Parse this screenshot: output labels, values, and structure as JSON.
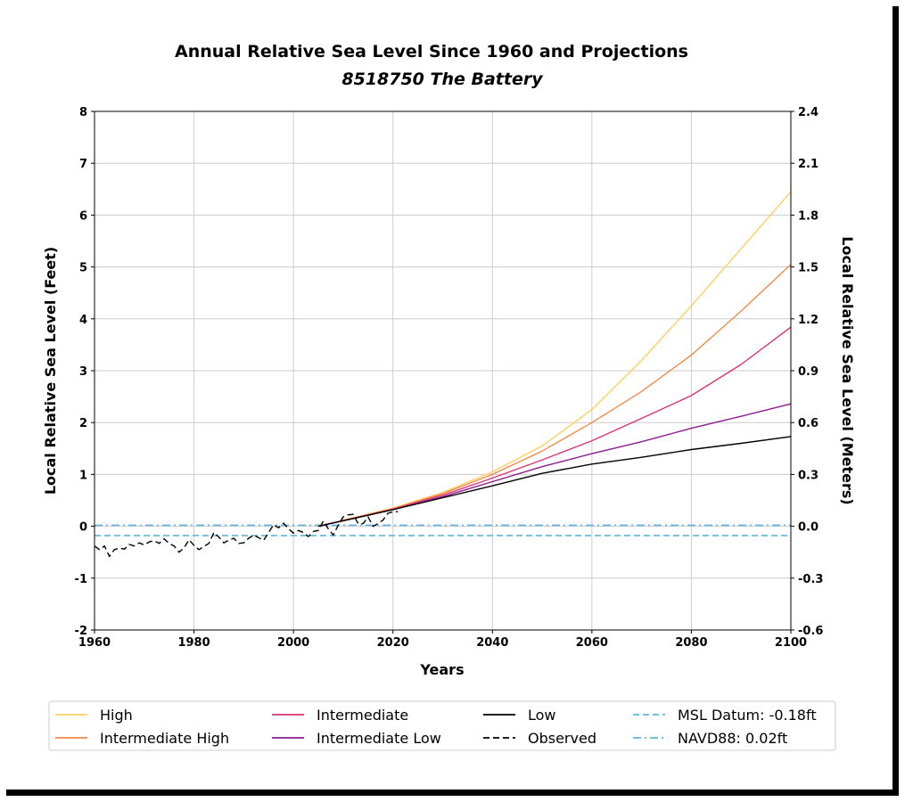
{
  "chart_data": {
    "type": "line",
    "title": "Annual Relative Sea Level Since 1960 and Projections",
    "subtitle": "8518750 The Battery",
    "xlabel": "Years",
    "ylabel_left": "Local Relative Sea Level (Feet)",
    "ylabel_right": "Local Relative Sea Level (Meters)",
    "xlim": [
      1960,
      2100
    ],
    "ylim_left": [
      -2,
      8
    ],
    "ylim_right": [
      -0.6,
      2.4
    ],
    "x_ticks": [
      1960,
      1980,
      2000,
      2020,
      2040,
      2060,
      2080,
      2100
    ],
    "y_ticks_left": [
      -2,
      -1,
      0,
      1,
      2,
      3,
      4,
      5,
      6,
      7,
      8
    ],
    "y_ticks_right": [
      "-0.6",
      "-0.3",
      "0.0",
      "0.3",
      "0.6",
      "0.9",
      "1.2",
      "1.5",
      "1.8",
      "2.1",
      "2.4"
    ],
    "grid": true,
    "legend_position": "bottom",
    "series": [
      {
        "name": "High",
        "color": "#fdcf5f",
        "style": "solid",
        "x": [
          2005,
          2020,
          2030,
          2040,
          2050,
          2060,
          2070,
          2080,
          2090,
          2100
        ],
        "y": [
          0.0,
          0.35,
          0.65,
          1.05,
          1.55,
          2.25,
          3.2,
          4.25,
          5.35,
          6.45
        ]
      },
      {
        "name": "Intermediate High",
        "color": "#f28a4a",
        "style": "solid",
        "x": [
          2005,
          2020,
          2030,
          2040,
          2050,
          2060,
          2070,
          2080,
          2090,
          2100
        ],
        "y": [
          0.0,
          0.34,
          0.63,
          1.0,
          1.45,
          2.0,
          2.6,
          3.3,
          4.15,
          5.05
        ]
      },
      {
        "name": "Intermediate",
        "color": "#dd3374",
        "style": "solid",
        "x": [
          2005,
          2020,
          2030,
          2040,
          2050,
          2060,
          2070,
          2080,
          2090,
          2100
        ],
        "y": [
          0.0,
          0.33,
          0.6,
          0.93,
          1.28,
          1.65,
          2.08,
          2.52,
          3.12,
          3.84
        ]
      },
      {
        "name": "Intermediate Low",
        "color": "#8c1c90",
        "style": "solid",
        "x": [
          2005,
          2020,
          2030,
          2040,
          2050,
          2060,
          2070,
          2080,
          2090,
          2100
        ],
        "y": [
          0.0,
          0.32,
          0.57,
          0.86,
          1.15,
          1.4,
          1.63,
          1.89,
          2.12,
          2.36
        ]
      },
      {
        "name": "Low",
        "color": "#000000",
        "style": "solid",
        "x": [
          2005,
          2020,
          2030,
          2040,
          2050,
          2060,
          2070,
          2080,
          2090,
          2100
        ],
        "y": [
          0.0,
          0.32,
          0.55,
          0.78,
          1.02,
          1.2,
          1.33,
          1.48,
          1.6,
          1.73
        ]
      },
      {
        "name": "Observed",
        "color": "#000000",
        "style": "dashed",
        "x": [
          1960,
          1961,
          1962,
          1963,
          1964,
          1965,
          1966,
          1967,
          1968,
          1969,
          1970,
          1971,
          1972,
          1973,
          1974,
          1975,
          1976,
          1977,
          1978,
          1979,
          1980,
          1981,
          1982,
          1983,
          1984,
          1985,
          1986,
          1987,
          1988,
          1989,
          1990,
          1991,
          1992,
          1993,
          1994,
          1995,
          1996,
          1997,
          1998,
          1999,
          2000,
          2001,
          2002,
          2003,
          2004,
          2005,
          2006,
          2007,
          2008,
          2009,
          2010,
          2011,
          2012,
          2013,
          2014,
          2015,
          2016,
          2017,
          2018,
          2019,
          2020,
          2021
        ],
        "y": [
          -0.38,
          -0.45,
          -0.38,
          -0.58,
          -0.45,
          -0.42,
          -0.44,
          -0.35,
          -0.38,
          -0.32,
          -0.36,
          -0.3,
          -0.28,
          -0.33,
          -0.24,
          -0.33,
          -0.38,
          -0.5,
          -0.42,
          -0.26,
          -0.37,
          -0.45,
          -0.39,
          -0.33,
          -0.12,
          -0.21,
          -0.32,
          -0.27,
          -0.23,
          -0.33,
          -0.32,
          -0.23,
          -0.17,
          -0.22,
          -0.27,
          -0.12,
          0.03,
          -0.03,
          0.06,
          -0.05,
          -0.13,
          -0.08,
          -0.12,
          -0.2,
          -0.1,
          -0.08,
          0.1,
          -0.05,
          -0.17,
          0.02,
          0.18,
          0.22,
          0.23,
          0.05,
          0.05,
          0.18,
          0.0,
          0.05,
          0.12,
          0.25,
          0.28,
          0.28
        ]
      },
      {
        "name": "MSL Datum: -0.18ft",
        "color": "#5fb4dc",
        "style": "dashed",
        "hline": -0.18
      },
      {
        "name": "NAVD88: 0.02ft",
        "color": "#5fb4dc",
        "style": "dashdot",
        "hline": 0.02
      }
    ]
  }
}
